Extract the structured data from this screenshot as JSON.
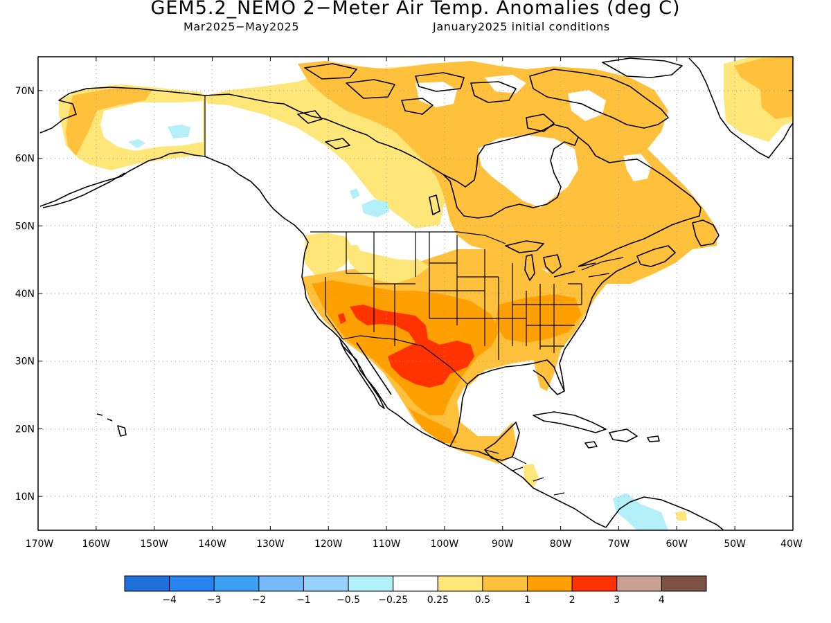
{
  "header": {
    "title": "GEM5.2_NEMO 2−Meter Air Temp. Anomalies (deg C)",
    "period": "Mar2025−May2025",
    "init": "January2025 initial conditions"
  },
  "map": {
    "lat_labels": [
      "70N",
      "60N",
      "50N",
      "40N",
      "30N",
      "20N",
      "10N"
    ],
    "lon_labels": [
      "170W",
      "160W",
      "150W",
      "140W",
      "130W",
      "120W",
      "110W",
      "100W",
      "90W",
      "80W",
      "70W",
      "60W",
      "50W",
      "40W"
    ],
    "extent": {
      "lon_min": -170,
      "lon_max": -40,
      "lat_min": 5,
      "lat_max": 75
    },
    "ocean_color": "#ffffff",
    "land_outline_color": "#000000",
    "grid_color": "#9a9a9a"
  },
  "colorbar": {
    "labels": [
      "−4",
      "−3",
      "−2",
      "−1",
      "−0.5",
      "−0.25",
      "0.25",
      "0.5",
      "1",
      "2",
      "3",
      "4"
    ],
    "colors": [
      "#1e6edc",
      "#2882f0",
      "#3ca0f0",
      "#78b9fa",
      "#96d2fa",
      "#b4f0fa",
      "#ffffff",
      "#ffe678",
      "#ffc03c",
      "#ffa000",
      "#ff3200",
      "#c8a096",
      "#7d5246"
    ]
  },
  "regions": {
    "anomaly_levels_present": [
      "−0.5",
      "0.25",
      "0.5",
      "1",
      "2"
    ],
    "warm_core": "Southwest United States and northern Mexico",
    "cool_patches": "Yukon, Saskatchewan and northern South America"
  }
}
